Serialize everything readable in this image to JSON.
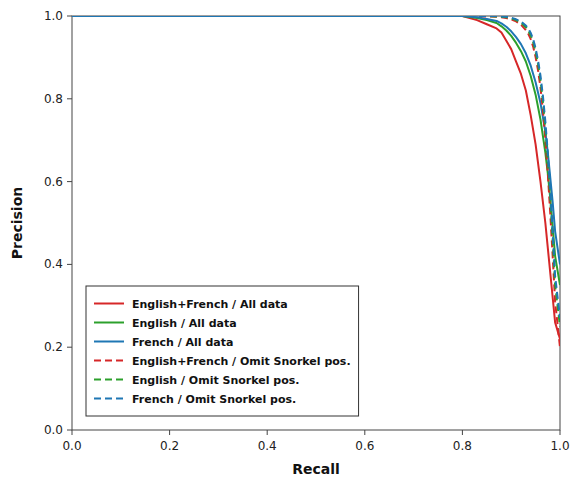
{
  "chart_data": {
    "type": "line",
    "xlabel": "Recall",
    "ylabel": "Precision",
    "xlim": [
      0.0,
      1.0
    ],
    "ylim": [
      0.0,
      1.0
    ],
    "xticks": [
      {
        "value": 0.0,
        "label": "0.0"
      },
      0.2,
      0.4,
      0.6,
      0.8,
      {
        "value": 1.0,
        "label": "1.0"
      }
    ],
    "yticks": [
      {
        "value": 0.0,
        "label": "0.0"
      },
      0.2,
      0.4,
      0.6,
      0.8,
      {
        "value": 1.0,
        "label": "1.0"
      }
    ],
    "grid": false,
    "legend": "lower left",
    "series": [
      {
        "name": "English+French / All data",
        "color": "#d62728",
        "line_style": "solid",
        "x": [
          0.0,
          0.1,
          0.2,
          0.3,
          0.4,
          0.5,
          0.6,
          0.7,
          0.75,
          0.8,
          0.83,
          0.85,
          0.87,
          0.88,
          0.89,
          0.9,
          0.91,
          0.92,
          0.93,
          0.94,
          0.95,
          0.96,
          0.97,
          0.975,
          0.98,
          0.985,
          0.99,
          1.0
        ],
        "values": [
          1.0,
          1.0,
          1.0,
          1.0,
          1.0,
          1.0,
          1.0,
          1.0,
          1.0,
          1.0,
          0.99,
          0.98,
          0.97,
          0.96,
          0.94,
          0.92,
          0.89,
          0.86,
          0.82,
          0.76,
          0.69,
          0.6,
          0.5,
          0.44,
          0.38,
          0.32,
          0.26,
          0.22
        ]
      },
      {
        "name": "English / All data",
        "color": "#2ca02c",
        "line_style": "solid",
        "x": [
          0.0,
          0.1,
          0.2,
          0.3,
          0.4,
          0.5,
          0.6,
          0.7,
          0.75,
          0.8,
          0.83,
          0.85,
          0.87,
          0.88,
          0.89,
          0.9,
          0.91,
          0.92,
          0.93,
          0.94,
          0.95,
          0.96,
          0.97,
          0.975,
          0.98,
          0.985,
          0.99,
          1.0
        ],
        "values": [
          1.0,
          1.0,
          1.0,
          1.0,
          1.0,
          1.0,
          1.0,
          1.0,
          1.0,
          1.0,
          0.995,
          0.99,
          0.983,
          0.975,
          0.965,
          0.952,
          0.935,
          0.915,
          0.89,
          0.855,
          0.81,
          0.75,
          0.67,
          0.62,
          0.56,
          0.49,
          0.42,
          0.35
        ]
      },
      {
        "name": "French / All data",
        "color": "#1f77b4",
        "line_style": "solid",
        "x": [
          0.0,
          0.1,
          0.2,
          0.3,
          0.4,
          0.5,
          0.6,
          0.7,
          0.75,
          0.8,
          0.83,
          0.85,
          0.87,
          0.88,
          0.89,
          0.9,
          0.91,
          0.92,
          0.93,
          0.94,
          0.95,
          0.96,
          0.97,
          0.975,
          0.98,
          0.985,
          0.99,
          1.0
        ],
        "values": [
          1.0,
          1.0,
          1.0,
          1.0,
          1.0,
          1.0,
          1.0,
          1.0,
          1.0,
          1.0,
          0.997,
          0.993,
          0.988,
          0.982,
          0.974,
          0.963,
          0.949,
          0.932,
          0.91,
          0.88,
          0.84,
          0.79,
          0.72,
          0.67,
          0.61,
          0.55,
          0.48,
          0.4
        ]
      },
      {
        "name": "English+French / Omit Snorkel pos.",
        "color": "#d62728",
        "line_style": "dashed",
        "x": [
          0.0,
          0.1,
          0.2,
          0.3,
          0.4,
          0.5,
          0.6,
          0.7,
          0.75,
          0.8,
          0.83,
          0.85,
          0.87,
          0.88,
          0.89,
          0.9,
          0.91,
          0.92,
          0.93,
          0.935,
          0.94,
          0.945,
          0.95,
          0.955,
          0.96,
          0.965,
          0.97,
          0.975,
          0.98,
          0.985,
          0.99,
          1.0
        ],
        "values": [
          1.0,
          1.0,
          1.0,
          1.0,
          1.0,
          1.0,
          1.0,
          1.0,
          1.0,
          1.0,
          1.0,
          0.999,
          0.998,
          0.997,
          0.995,
          0.992,
          0.987,
          0.979,
          0.966,
          0.957,
          0.944,
          0.926,
          0.901,
          0.869,
          0.827,
          0.772,
          0.703,
          0.62,
          0.524,
          0.42,
          0.31,
          0.2
        ]
      },
      {
        "name": "English / Omit Snorkel pos.",
        "color": "#2ca02c",
        "line_style": "dashed",
        "x": [
          0.0,
          0.1,
          0.2,
          0.3,
          0.4,
          0.5,
          0.6,
          0.7,
          0.75,
          0.8,
          0.83,
          0.85,
          0.87,
          0.88,
          0.89,
          0.9,
          0.91,
          0.92,
          0.93,
          0.935,
          0.94,
          0.945,
          0.95,
          0.955,
          0.96,
          0.965,
          0.97,
          0.975,
          0.98,
          0.985,
          0.99,
          1.0
        ],
        "values": [
          1.0,
          1.0,
          1.0,
          1.0,
          1.0,
          1.0,
          1.0,
          1.0,
          1.0,
          1.0,
          1.0,
          1.0,
          0.999,
          0.998,
          0.997,
          0.994,
          0.99,
          0.984,
          0.973,
          0.965,
          0.953,
          0.937,
          0.914,
          0.884,
          0.845,
          0.794,
          0.73,
          0.652,
          0.561,
          0.459,
          0.35,
          0.25
        ]
      },
      {
        "name": "French / Omit Snorkel pos.",
        "color": "#1f77b4",
        "line_style": "dashed",
        "x": [
          0.0,
          0.1,
          0.2,
          0.3,
          0.4,
          0.5,
          0.6,
          0.7,
          0.75,
          0.8,
          0.83,
          0.85,
          0.87,
          0.88,
          0.89,
          0.9,
          0.91,
          0.92,
          0.93,
          0.935,
          0.94,
          0.945,
          0.95,
          0.955,
          0.96,
          0.965,
          0.97,
          0.975,
          0.98,
          0.985,
          0.99,
          1.0
        ],
        "values": [
          1.0,
          1.0,
          1.0,
          1.0,
          1.0,
          1.0,
          1.0,
          1.0,
          1.0,
          1.0,
          1.0,
          1.0,
          1.0,
          0.999,
          0.998,
          0.996,
          0.992,
          0.987,
          0.977,
          0.97,
          0.959,
          0.944,
          0.922,
          0.893,
          0.856,
          0.807,
          0.745,
          0.669,
          0.58,
          0.48,
          0.372,
          0.27
        ]
      }
    ]
  }
}
